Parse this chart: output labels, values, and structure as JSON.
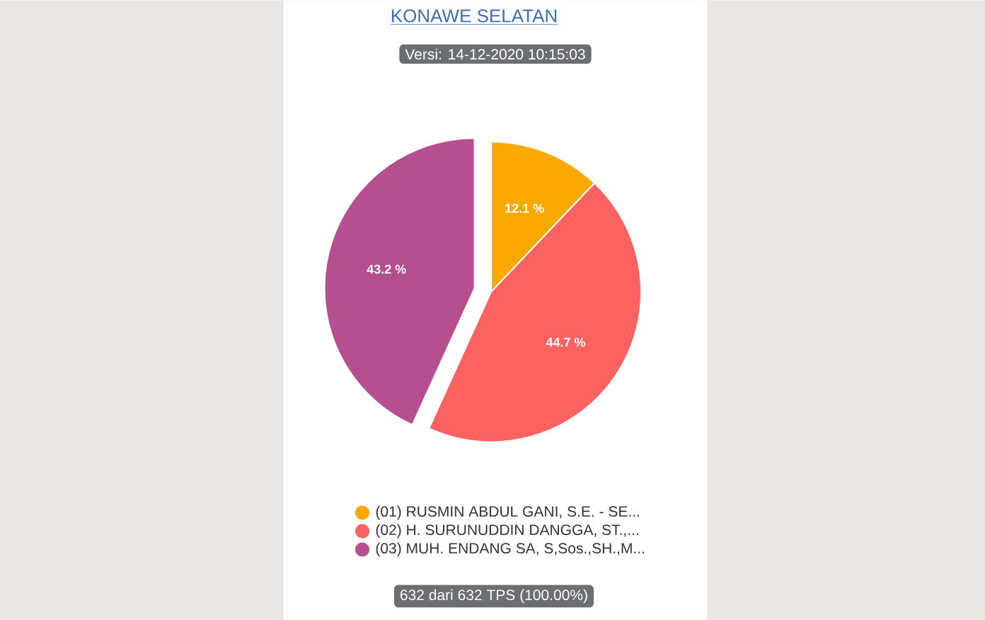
{
  "chart_data": {
    "type": "pie",
    "title": "KONAWE SELATAN",
    "categories": [
      "(01) RUSMIN ABDUL GANI, S.E. - SE...",
      "(02) H. SURUNUDDIN DANGGA, ST.,...",
      "(03) MUH. ENDANG SA, S,Sos.,SH.,M..."
    ],
    "values": [
      12.1,
      44.7,
      43.2
    ],
    "colors": [
      "#fba800",
      "#fc6360",
      "#b64f8f"
    ],
    "value_labels": [
      "12.1 %",
      "44.7 %",
      "43.2 %"
    ],
    "annotations": [
      "Versi: 14-12-2020 10:15:03",
      "632 dari 632 TPS (100.00%)"
    ],
    "legend": "bottom"
  }
}
